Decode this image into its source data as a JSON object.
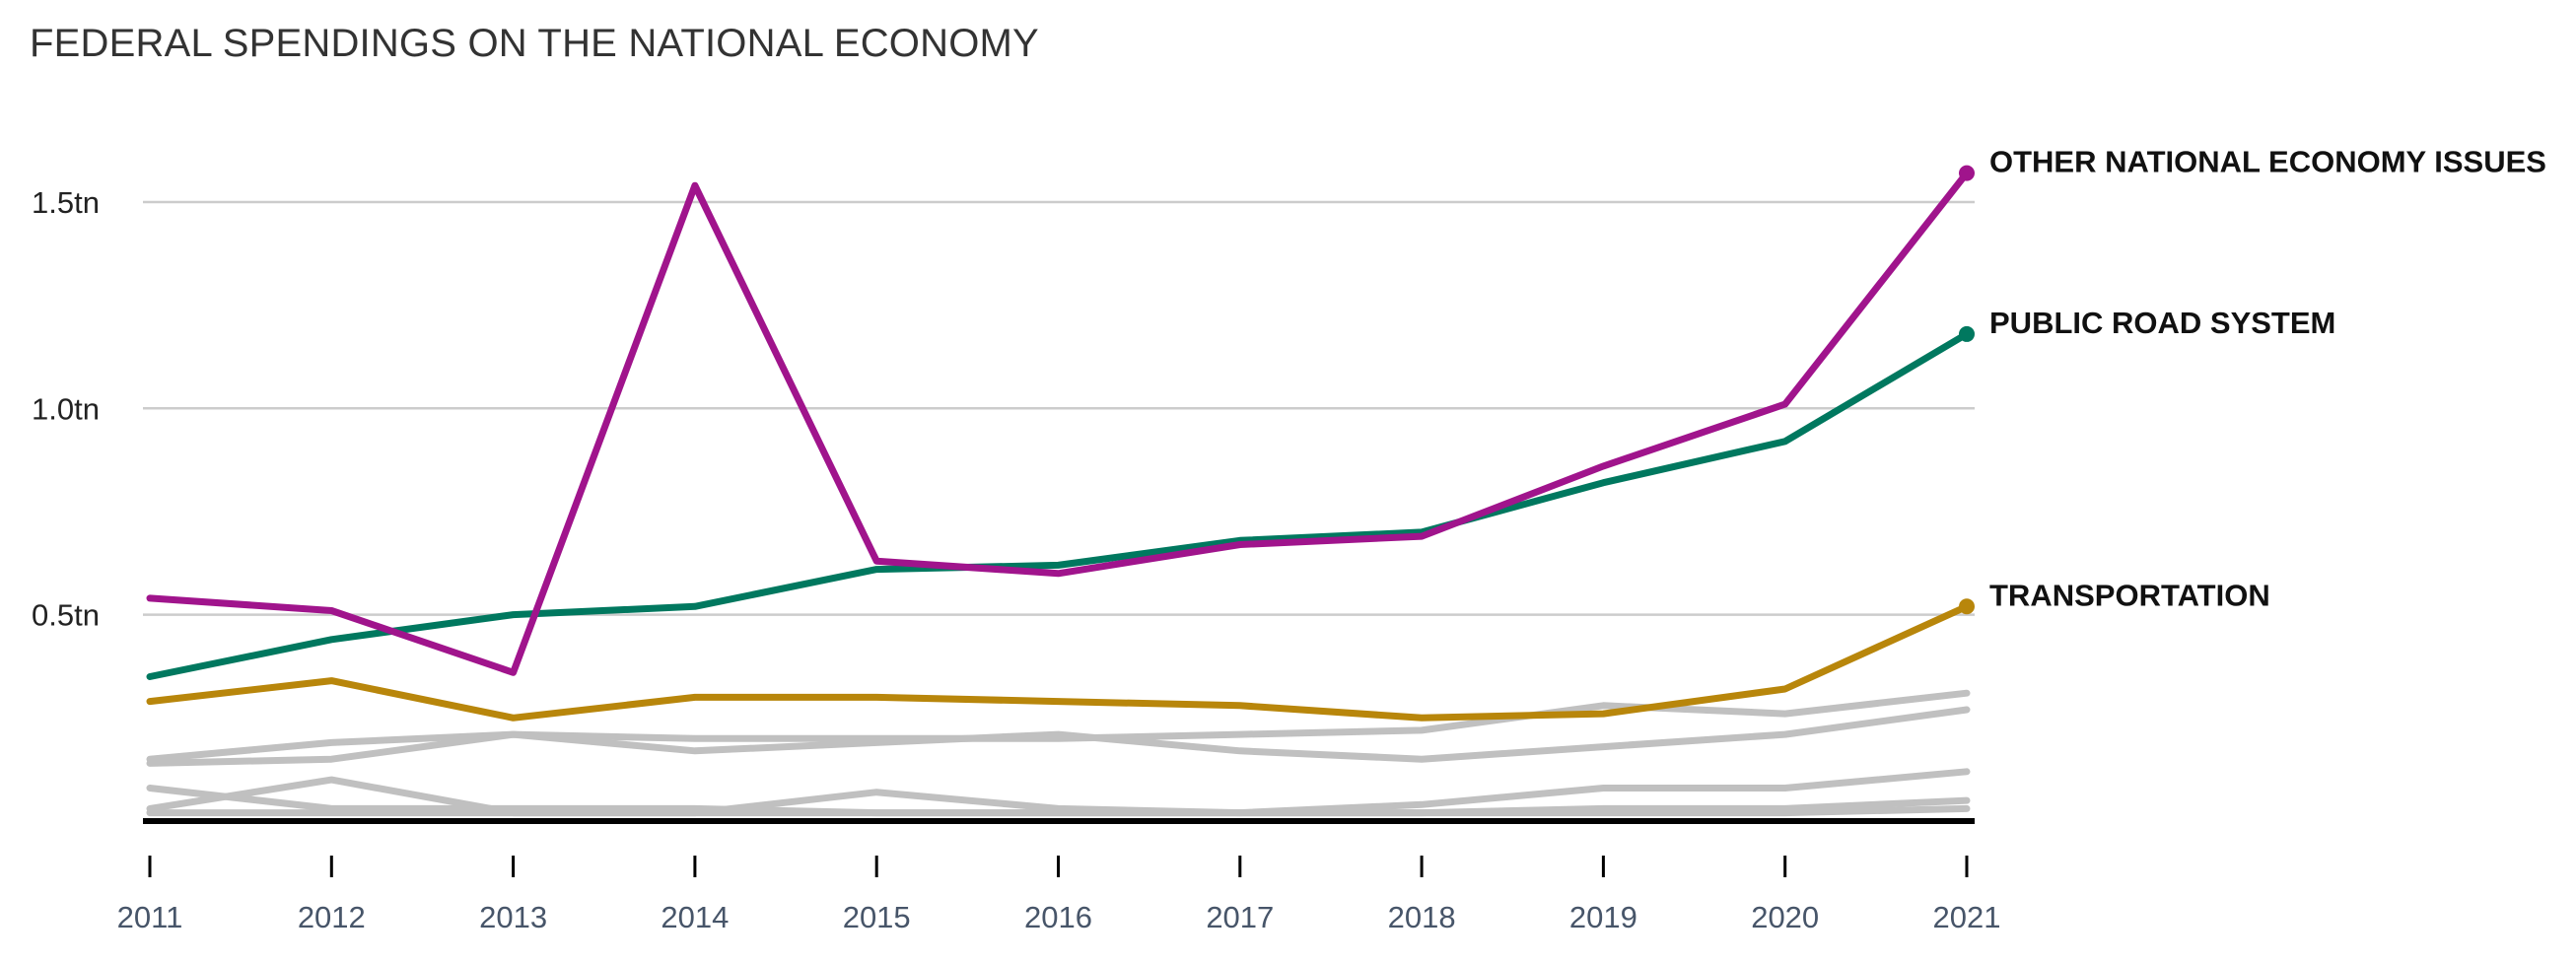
{
  "page": {
    "title": "FEDERAL SPENDINGS ON THE NATIONAL ECONOMY"
  },
  "chart_data": {
    "type": "line",
    "title": "FEDERAL SPENDINGS ON THE NATIONAL ECONOMY",
    "xlabel": "",
    "ylabel": "",
    "x": [
      2011,
      2012,
      2013,
      2014,
      2015,
      2016,
      2017,
      2018,
      2019,
      2020,
      2021
    ],
    "x_tick_labels": [
      "2011",
      "2012",
      "2013",
      "2014",
      "2015",
      "2016",
      "2017",
      "2018",
      "2019",
      "2020",
      "2021"
    ],
    "y_ticks": [
      0.5,
      1.0,
      1.5
    ],
    "y_tick_labels": [
      "0.5tn",
      "1.0tn",
      "1.5tn"
    ],
    "ylim": [
      0,
      1.6
    ],
    "grid": "horizontal",
    "legend": "end-of-line labels",
    "colors": {
      "gridline": "#cccccc",
      "baseline": "#000000",
      "background_series": "#c0c0c0"
    },
    "series": [
      {
        "name": "OTHER NATIONAL ECONOMY ISSUES",
        "color": "#a0148c",
        "highlight": true,
        "values": [
          0.54,
          0.51,
          0.36,
          1.54,
          0.63,
          0.6,
          0.67,
          0.69,
          0.86,
          1.01,
          1.57
        ]
      },
      {
        "name": "PUBLIC ROAD SYSTEM",
        "color": "#00785f",
        "highlight": true,
        "values": [
          0.35,
          0.44,
          0.5,
          0.52,
          0.61,
          0.62,
          0.68,
          0.7,
          0.82,
          0.92,
          1.18
        ]
      },
      {
        "name": "TRANSPORTATION",
        "color": "#b8860b",
        "highlight": true,
        "values": [
          0.29,
          0.34,
          0.25,
          0.3,
          0.3,
          0.29,
          0.28,
          0.25,
          0.26,
          0.32,
          0.52
        ]
      },
      {
        "highlight": false,
        "values": [
          0.15,
          0.19,
          0.21,
          0.2,
          0.2,
          0.2,
          0.21,
          0.22,
          0.28,
          0.26,
          0.31
        ]
      },
      {
        "highlight": false,
        "values": [
          0.14,
          0.15,
          0.21,
          0.17,
          0.19,
          0.21,
          0.17,
          0.15,
          0.18,
          0.21,
          0.27
        ]
      },
      {
        "highlight": false,
        "values": [
          0.03,
          0.1,
          0.02,
          0.02,
          0.07,
          0.03,
          0.02,
          0.04,
          0.08,
          0.08,
          0.12
        ]
      },
      {
        "highlight": false,
        "values": [
          0.08,
          0.03,
          0.03,
          0.03,
          0.02,
          0.02,
          0.02,
          0.02,
          0.03,
          0.03,
          0.05
        ]
      },
      {
        "highlight": false,
        "values": [
          0.02,
          0.02,
          0.02,
          0.02,
          0.02,
          0.02,
          0.02,
          0.02,
          0.02,
          0.02,
          0.03
        ]
      }
    ]
  }
}
